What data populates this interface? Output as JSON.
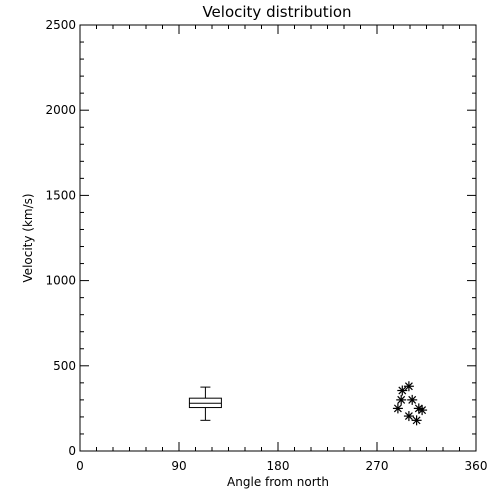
{
  "chart_data": {
    "type": "scatter",
    "title": "Velocity distribution",
    "xlabel": "Angle from north",
    "ylabel": "Velocity (km/s)",
    "xlim": [
      0,
      360
    ],
    "ylim": [
      0,
      2500
    ],
    "xticks": [
      "0",
      "90",
      "180",
      "270",
      "360"
    ],
    "yticks": [
      "0",
      "500",
      "1000",
      "1500",
      "2000",
      "2500"
    ],
    "grid": false,
    "box": {
      "x": 114,
      "whisker_low": 180,
      "q1": 255,
      "median": 280,
      "q3": 310,
      "whisker_high": 375
    },
    "points": [
      {
        "x": 289,
        "y": 250
      },
      {
        "x": 292,
        "y": 300
      },
      {
        "x": 293,
        "y": 355
      },
      {
        "x": 299,
        "y": 380
      },
      {
        "x": 299,
        "y": 205
      },
      {
        "x": 302,
        "y": 300
      },
      {
        "x": 306,
        "y": 180
      },
      {
        "x": 308,
        "y": 250
      },
      {
        "x": 311,
        "y": 240
      }
    ]
  }
}
